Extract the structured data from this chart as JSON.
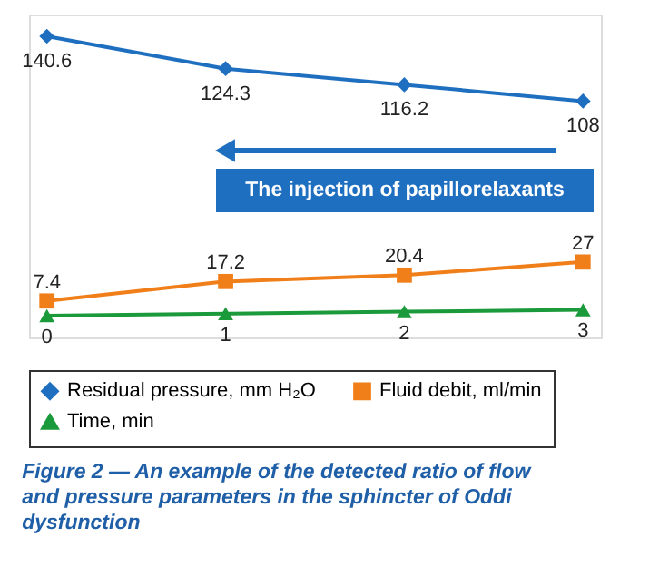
{
  "chart_data": {
    "type": "line",
    "categories": [
      null,
      null,
      null,
      null
    ],
    "series": [
      {
        "name": "Residual pressure, mm H₂O",
        "color": "#1f6fc0",
        "values": [
          140.6,
          124.3,
          116.2,
          108
        ],
        "marker": "diamond"
      },
      {
        "name": "Fluid debit, ml/min",
        "color": "#f07f1a",
        "values": [
          7.4,
          17.2,
          20.4,
          27
        ],
        "marker": "square"
      },
      {
        "name": "Time, min",
        "color": "#1a9a3a",
        "values": [
          0,
          1,
          2,
          3
        ],
        "marker": "triangle"
      }
    ],
    "data_labels": true,
    "legend": "bottom",
    "grid": false,
    "line_style": "solid",
    "annotations": [
      "The injection of papillorelaxants",
      "Figure 2 — An example of the detected ratio of flow and pressure parameters in the sphincter of Oddi dysfunction"
    ]
  }
}
